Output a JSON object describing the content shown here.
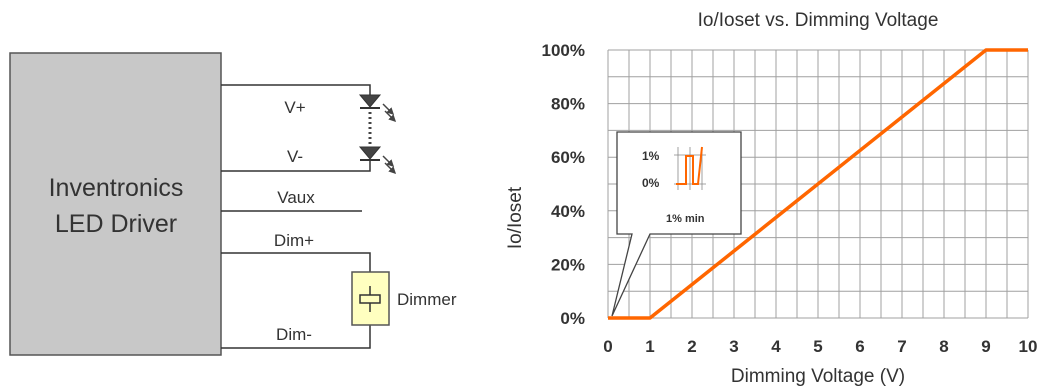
{
  "diagram": {
    "driver_label_line1": "Inventronics",
    "driver_label_line2": "LED Driver",
    "terminals": {
      "vplus": "V+",
      "vminus": "V-",
      "vaux": "Vaux",
      "dimplus": "Dim+",
      "dimminus": "Dim-"
    },
    "dimmer_label": "Dimmer",
    "colors": {
      "driver_fill": "#c8c8c8",
      "dimmer_fill": "#ffffc0",
      "wire": "#333333"
    }
  },
  "chart_data": {
    "type": "line",
    "title": "Io/Ioset vs. Dimming Voltage",
    "xlabel": "Dimming Voltage (V)",
    "ylabel": "Io/Ioset",
    "xlim": [
      0,
      10
    ],
    "ylim": [
      0,
      100
    ],
    "x_ticks": [
      "0",
      "1",
      "2",
      "3",
      "4",
      "5",
      "6",
      "7",
      "8",
      "9",
      "10"
    ],
    "y_ticks": [
      "0%",
      "20%",
      "40%",
      "60%",
      "80%",
      "100%"
    ],
    "grid": true,
    "line_color": "#ff6600",
    "series": [
      {
        "x": [
          0,
          1,
          9,
          10
        ],
        "y": [
          0,
          0,
          100,
          100
        ]
      }
    ],
    "callout": {
      "tick_1": "1%",
      "tick_0": "0%",
      "label": "1% min"
    }
  }
}
